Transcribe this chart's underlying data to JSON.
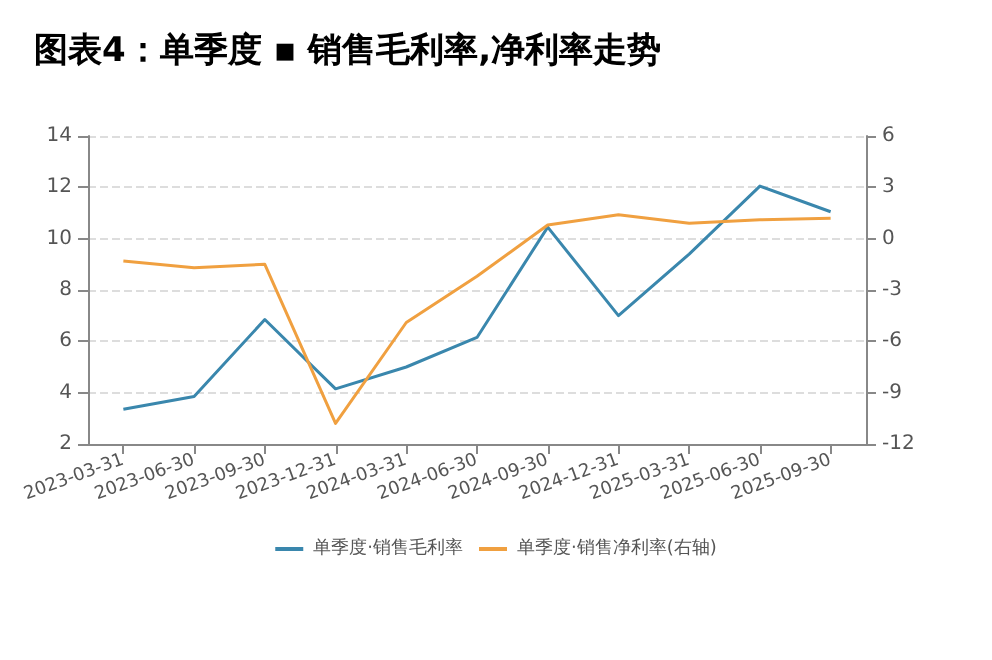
{
  "chart_data": {
    "type": "line",
    "title": "图表4：单季度 ▪ 销售毛利率,净利率走势",
    "categories": [
      "2023-03-31",
      "2023-06-30",
      "2023-09-30",
      "2023-12-31",
      "2024-03-31",
      "2024-06-30",
      "2024-09-30",
      "2024-12-31",
      "2025-03-31",
      "2025-06-30",
      "2025-09-30"
    ],
    "series": [
      {
        "name": "单季度·销售毛利率",
        "color": "#3a87ad",
        "values": [
          3.35,
          3.85,
          6.85,
          4.15,
          5.0,
          6.15,
          10.45,
          7.0,
          9.4,
          12.05,
          11.05
        ]
      },
      {
        "name": "单季度·销售净利率(右轴)",
        "color": "#f0a040",
        "axis": "y2",
        "values": [
          -1.3,
          -1.7,
          -1.5,
          -10.8,
          -4.9,
          -2.2,
          0.8,
          1.4,
          0.9,
          1.1,
          1.2
        ]
      }
    ],
    "ylim": [
      2,
      14
    ],
    "yticks": [
      2,
      4,
      6,
      8,
      10,
      12,
      14
    ],
    "y2lim": [
      -12,
      6
    ],
    "y2ticks": [
      -12,
      -9,
      -6,
      -3,
      0,
      3,
      6
    ],
    "grid": "y",
    "legend": "bottom",
    "marker": "none",
    "line_style": "solid"
  }
}
